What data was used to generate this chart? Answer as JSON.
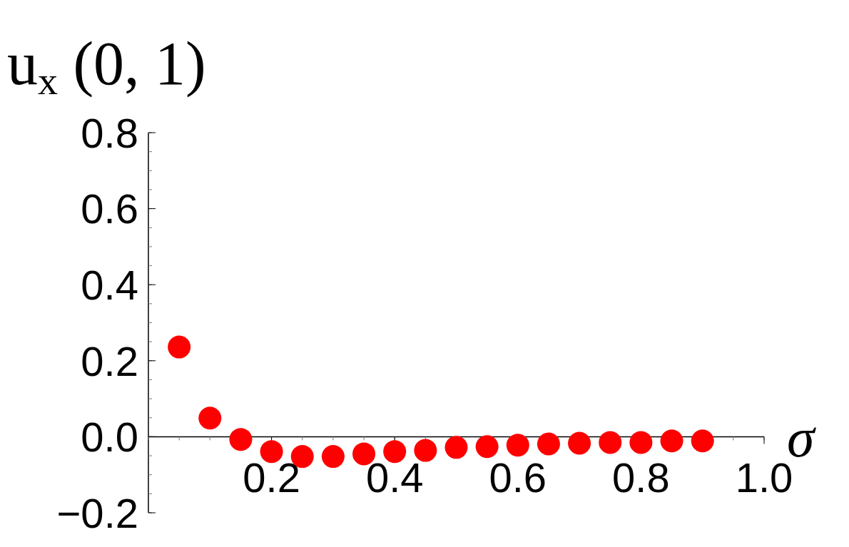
{
  "chart_data": {
    "type": "scatter",
    "xlabel": "σ",
    "ylabel": "u$_{x}$(0, 1)",
    "x": [
      0.05,
      0.1,
      0.15,
      0.2,
      0.25,
      0.3,
      0.35,
      0.4,
      0.45,
      0.5,
      0.55,
      0.6,
      0.65,
      0.7,
      0.75,
      0.8,
      0.85,
      0.9
    ],
    "series": [
      {
        "color": "#ff0000",
        "values": [
          0.236,
          0.049,
          -0.007,
          -0.039,
          -0.052,
          -0.052,
          -0.045,
          -0.039,
          -0.036,
          -0.028,
          -0.026,
          -0.022,
          -0.019,
          -0.017,
          -0.015,
          -0.015,
          -0.011,
          -0.011
        ]
      }
    ],
    "xlim": [
      0,
      1
    ],
    "ylim": [
      -0.2,
      0.8
    ],
    "xticks": [
      {
        "value": 0.2,
        "label": "0.2"
      },
      {
        "value": 0.4,
        "label": "0.4"
      },
      {
        "value": 0.6,
        "label": "0.6"
      },
      {
        "value": 0.8,
        "label": "0.8"
      },
      {
        "value": 1,
        "label": "1.0"
      }
    ],
    "yticks": [
      {
        "value": -0.2,
        "label": "−0.2"
      },
      {
        "value": 0,
        "label": "0.0"
      },
      {
        "value": 0.2,
        "label": "0.2"
      },
      {
        "value": 0.4,
        "label": "0.4"
      },
      {
        "value": 0.6,
        "label": "0.6"
      },
      {
        "value": 0.8,
        "label": "0.8"
      }
    ],
    "marker": "circle"
  }
}
